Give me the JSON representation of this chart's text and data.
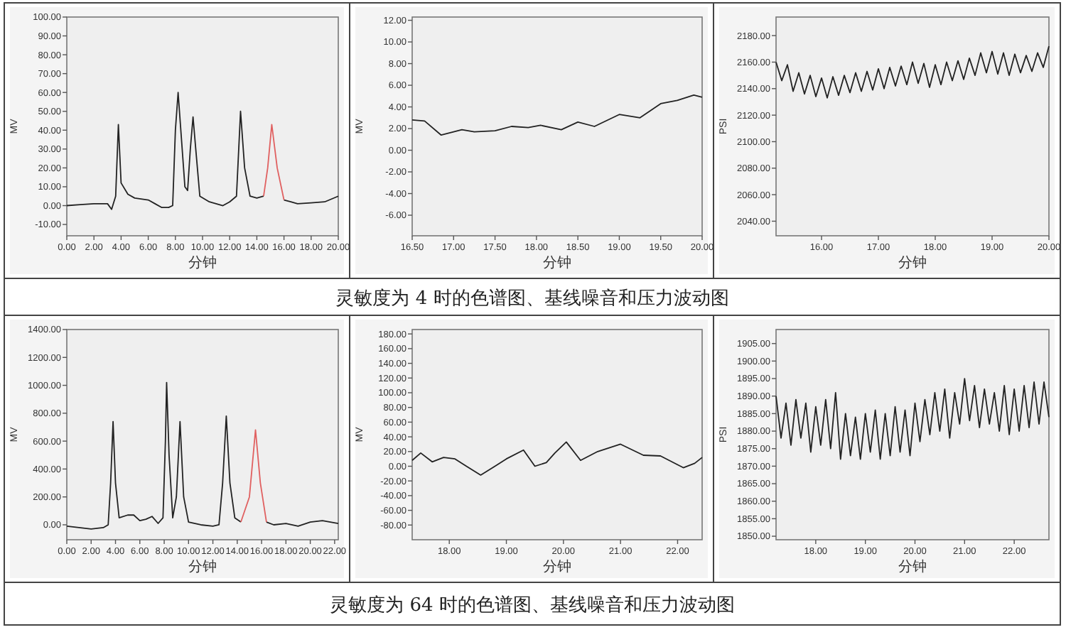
{
  "chart_data": [
    {
      "type": "line",
      "xlabel": "分钟",
      "ylabel": "MV",
      "xlim": [
        0,
        20
      ],
      "ylim": [
        -16,
        100
      ],
      "xticks": [
        {
          "value": 0,
          "label": "0.00"
        },
        {
          "value": 2,
          "label": "2.00"
        },
        {
          "value": 4,
          "label": "4.00"
        },
        {
          "value": 6,
          "label": "6.00"
        },
        {
          "value": 8,
          "label": "8.00"
        },
        {
          "value": 10,
          "label": "10.00"
        },
        {
          "value": 12,
          "label": "12.00"
        },
        {
          "value": 14,
          "label": "14.00"
        },
        {
          "value": 16,
          "label": "16.00"
        },
        {
          "value": 18,
          "label": "18.00"
        },
        {
          "value": 20,
          "label": "20.00"
        }
      ],
      "yticks": [
        {
          "value": -10,
          "label": "-10.00"
        },
        {
          "value": 0,
          "label": "0.00"
        },
        {
          "value": 10,
          "label": "10.00"
        },
        {
          "value": 20,
          "label": "20.00"
        },
        {
          "value": 30,
          "label": "30.00"
        },
        {
          "value": 40,
          "label": "40.00"
        },
        {
          "value": 50,
          "label": "50.00"
        },
        {
          "value": 60,
          "label": "60.00"
        },
        {
          "value": 70,
          "label": "70.00"
        },
        {
          "value": 80,
          "label": "80.00"
        },
        {
          "value": 90,
          "label": "90.00"
        },
        {
          "value": 100,
          "label": "100.00"
        }
      ],
      "series": [
        {
          "color": "#222222",
          "x": [
            0,
            1,
            2,
            3,
            3.3,
            3.6,
            3.8,
            4,
            4.5,
            5,
            6,
            6.5,
            7,
            7.5,
            7.8,
            8,
            8.2,
            8.4,
            8.7,
            8.9,
            9.1,
            9.3,
            9.5,
            9.8,
            10.5,
            11.5,
            12,
            12.5,
            12.8,
            13.1,
            13.5,
            14,
            14.5,
            15,
            16,
            16.5,
            17,
            18,
            19,
            20
          ],
          "values": [
            0,
            0.5,
            1,
            1,
            -2,
            5,
            43,
            12,
            6,
            4,
            3,
            1,
            -1,
            -1,
            0,
            40,
            60,
            40,
            10,
            8,
            30,
            47,
            30,
            5,
            2,
            0,
            2,
            5,
            50,
            20,
            5,
            4,
            5,
            null,
            3,
            2,
            1,
            1.5,
            2,
            5
          ]
        },
        {
          "color": "#e06060",
          "x": [
            14.5,
            14.8,
            15.1,
            15.5,
            16
          ],
          "values": [
            5,
            20,
            43,
            20,
            3
          ]
        }
      ]
    },
    {
      "type": "line",
      "xlabel": "分钟",
      "ylabel": "MV",
      "xlim": [
        16.5,
        20
      ],
      "ylim": [
        -7.9,
        12.3
      ],
      "xticks": [
        {
          "value": 16.5,
          "label": "16.50"
        },
        {
          "value": 17,
          "label": "17.00"
        },
        {
          "value": 17.5,
          "label": "17.50"
        },
        {
          "value": 18,
          "label": "18.00"
        },
        {
          "value": 18.5,
          "label": "18.50"
        },
        {
          "value": 19,
          "label": "19.00"
        },
        {
          "value": 19.5,
          "label": "19.50"
        },
        {
          "value": 20,
          "label": "20.00"
        }
      ],
      "yticks": [
        {
          "value": -6,
          "label": "-6.00"
        },
        {
          "value": -4,
          "label": "-4.00"
        },
        {
          "value": -2,
          "label": "-2.00"
        },
        {
          "value": 0,
          "label": "0.00"
        },
        {
          "value": 2,
          "label": "2.00"
        },
        {
          "value": 4,
          "label": "4.00"
        },
        {
          "value": 6,
          "label": "6.00"
        },
        {
          "value": 8,
          "label": "8.00"
        },
        {
          "value": 10,
          "label": "10.00"
        },
        {
          "value": 12,
          "label": "12.00"
        }
      ],
      "series": [
        {
          "color": "#222222",
          "x": [
            16.5,
            16.65,
            16.85,
            17.1,
            17.25,
            17.5,
            17.7,
            17.9,
            18.05,
            18.3,
            18.5,
            18.7,
            19,
            19.25,
            19.5,
            19.7,
            19.9,
            20
          ],
          "values": [
            2.8,
            2.7,
            1.4,
            1.9,
            1.7,
            1.8,
            2.2,
            2.1,
            2.3,
            1.9,
            2.6,
            2.2,
            3.3,
            3,
            4.3,
            4.6,
            5.1,
            4.9
          ]
        }
      ]
    },
    {
      "type": "line",
      "xlabel": "分钟",
      "ylabel": "PSI",
      "xlim": [
        15.2,
        20
      ],
      "ylim": [
        2029,
        2194
      ],
      "xticks": [
        {
          "value": 16,
          "label": "16.00"
        },
        {
          "value": 17,
          "label": "17.00"
        },
        {
          "value": 18,
          "label": "18.00"
        },
        {
          "value": 19,
          "label": "19.00"
        },
        {
          "value": 20,
          "label": "20.00"
        }
      ],
      "yticks": [
        {
          "value": 2040,
          "label": "2040.00"
        },
        {
          "value": 2060,
          "label": "2060.00"
        },
        {
          "value": 2080,
          "label": "2080.00"
        },
        {
          "value": 2100,
          "label": "2100.00"
        },
        {
          "value": 2120,
          "label": "2120.00"
        },
        {
          "value": 2140,
          "label": "2140.00"
        },
        {
          "value": 2160,
          "label": "2160.00"
        },
        {
          "value": 2180,
          "label": "2180.00"
        }
      ],
      "series": [
        {
          "color": "#222222",
          "x": [
            15.2,
            15.3,
            15.4,
            15.5,
            15.6,
            15.7,
            15.8,
            15.9,
            16,
            16.1,
            16.2,
            16.3,
            16.4,
            16.5,
            16.6,
            16.7,
            16.8,
            16.9,
            17,
            17.1,
            17.2,
            17.3,
            17.4,
            17.5,
            17.6,
            17.7,
            17.8,
            17.9,
            18,
            18.1,
            18.2,
            18.3,
            18.4,
            18.5,
            18.6,
            18.7,
            18.8,
            18.9,
            19,
            19.1,
            19.2,
            19.3,
            19.4,
            19.5,
            19.6,
            19.7,
            19.8,
            19.9,
            20
          ],
          "values": [
            2160,
            2146,
            2158,
            2138,
            2152,
            2136,
            2150,
            2134,
            2148,
            2133,
            2149,
            2135,
            2150,
            2137,
            2152,
            2138,
            2153,
            2139,
            2155,
            2140,
            2156,
            2142,
            2157,
            2143,
            2160,
            2144,
            2159,
            2141,
            2158,
            2143,
            2160,
            2146,
            2161,
            2147,
            2163,
            2150,
            2167,
            2152,
            2168,
            2151,
            2167,
            2150,
            2166,
            2152,
            2165,
            2153,
            2167,
            2156,
            2172
          ]
        }
      ]
    },
    {
      "type": "other",
      "title": "灵敏度为 4 时的色谱图、基线噪音和压力波动图"
    },
    {
      "type": "line",
      "xlabel": "分钟",
      "ylabel": "MV",
      "xlim": [
        0,
        22.3
      ],
      "ylim": [
        -107,
        1400
      ],
      "xticks": [
        {
          "value": 0,
          "label": "0.00"
        },
        {
          "value": 2,
          "label": "2.00"
        },
        {
          "value": 4,
          "label": "4.00"
        },
        {
          "value": 6,
          "label": "6.00"
        },
        {
          "value": 8,
          "label": "8.00"
        },
        {
          "value": 10,
          "label": "10.00"
        },
        {
          "value": 12,
          "label": "12.00"
        },
        {
          "value": 14,
          "label": "14.00"
        },
        {
          "value": 16,
          "label": "16.00"
        },
        {
          "value": 18,
          "label": "18.00"
        },
        {
          "value": 20,
          "label": "20.00"
        },
        {
          "value": 22,
          "label": "22.00"
        }
      ],
      "yticks": [
        {
          "value": 0,
          "label": "0.00"
        },
        {
          "value": 200,
          "label": "200.00"
        },
        {
          "value": 400,
          "label": "400.00"
        },
        {
          "value": 600,
          "label": "600.00"
        },
        {
          "value": 800,
          "label": "800.00"
        },
        {
          "value": 1000,
          "label": "1000.00"
        },
        {
          "value": 1200,
          "label": "1200.00"
        },
        {
          "value": 1400,
          "label": "1400.00"
        }
      ],
      "series": [
        {
          "color": "#222222",
          "x": [
            0,
            1,
            2,
            3,
            3.4,
            3.6,
            3.8,
            4,
            4.3,
            5,
            5.5,
            6,
            6.5,
            7,
            7.5,
            7.9,
            8.1,
            8.2,
            8.4,
            8.7,
            9,
            9.3,
            9.6,
            10,
            11,
            12,
            12.5,
            12.8,
            13.1,
            13.4,
            13.8,
            14.3,
            15,
            16.4,
            17,
            18,
            19,
            20,
            21,
            22.3
          ],
          "values": [
            -10,
            -20,
            -30,
            -20,
            0,
            300,
            740,
            300,
            50,
            70,
            70,
            30,
            40,
            60,
            10,
            50,
            600,
            1020,
            500,
            50,
            200,
            740,
            200,
            20,
            0,
            -10,
            0,
            300,
            780,
            300,
            50,
            20,
            null,
            20,
            0,
            10,
            -10,
            20,
            30,
            10
          ]
        },
        {
          "color": "#e06060",
          "x": [
            14.3,
            15,
            15.5,
            15.9,
            16.4
          ],
          "values": [
            20,
            200,
            680,
            300,
            20
          ]
        }
      ]
    },
    {
      "type": "line",
      "xlabel": "分钟",
      "ylabel": "MV",
      "xlim": [
        17.35,
        22.43
      ],
      "ylim": [
        -100,
        186
      ],
      "xticks": [
        {
          "value": 18,
          "label": "18.00"
        },
        {
          "value": 19,
          "label": "19.00"
        },
        {
          "value": 20,
          "label": "20.00"
        },
        {
          "value": 21,
          "label": "21.00"
        },
        {
          "value": 22,
          "label": "22.00"
        }
      ],
      "yticks": [
        {
          "value": -80,
          "label": "-80.00"
        },
        {
          "value": -60,
          "label": "-60.00"
        },
        {
          "value": -40,
          "label": "-40.00"
        },
        {
          "value": -20,
          "label": "-20.00"
        },
        {
          "value": 0,
          "label": "0.00"
        },
        {
          "value": 20,
          "label": "20.00"
        },
        {
          "value": 40,
          "label": "40.00"
        },
        {
          "value": 60,
          "label": "60.00"
        },
        {
          "value": 80,
          "label": "80.00"
        },
        {
          "value": 100,
          "label": "100.00"
        },
        {
          "value": 120,
          "label": "120.00"
        },
        {
          "value": 140,
          "label": "140.00"
        },
        {
          "value": 160,
          "label": "160.00"
        },
        {
          "value": 180,
          "label": "180.00"
        }
      ],
      "series": [
        {
          "color": "#222222",
          "x": [
            17.35,
            17.5,
            17.7,
            17.9,
            18.1,
            18.3,
            18.55,
            18.8,
            19,
            19.3,
            19.5,
            19.7,
            19.85,
            20.05,
            20.3,
            20.6,
            21,
            21.4,
            21.7,
            22.1,
            22.3,
            22.43
          ],
          "values": [
            8,
            18,
            6,
            12,
            10,
            0,
            -12,
            0,
            10,
            22,
            0,
            5,
            18,
            33,
            8,
            20,
            30,
            15,
            14,
            -2,
            4,
            12
          ]
        }
      ]
    },
    {
      "type": "line",
      "xlabel": "分钟",
      "ylabel": "PSI",
      "xlim": [
        17.2,
        22.7
      ],
      "ylim": [
        1849,
        1909
      ],
      "xticks": [
        {
          "value": 18,
          "label": "18.00"
        },
        {
          "value": 19,
          "label": "19.00"
        },
        {
          "value": 20,
          "label": "20.00"
        },
        {
          "value": 21,
          "label": "21.00"
        },
        {
          "value": 22,
          "label": "22.00"
        }
      ],
      "yticks": [
        {
          "value": 1850,
          "label": "1850.00"
        },
        {
          "value": 1855,
          "label": "1855.00"
        },
        {
          "value": 1860,
          "label": "1860.00"
        },
        {
          "value": 1865,
          "label": "1865.00"
        },
        {
          "value": 1870,
          "label": "1870.00"
        },
        {
          "value": 1875,
          "label": "1875.00"
        },
        {
          "value": 1880,
          "label": "1880.00"
        },
        {
          "value": 1885,
          "label": "1885.00"
        },
        {
          "value": 1890,
          "label": "1890.00"
        },
        {
          "value": 1895,
          "label": "1895.00"
        },
        {
          "value": 1900,
          "label": "1900.00"
        },
        {
          "value": 1905,
          "label": "1905.00"
        }
      ],
      "series": [
        {
          "color": "#222222",
          "x": [
            17.2,
            17.3,
            17.4,
            17.5,
            17.6,
            17.7,
            17.8,
            17.9,
            18,
            18.1,
            18.2,
            18.3,
            18.4,
            18.5,
            18.6,
            18.7,
            18.8,
            18.9,
            19,
            19.1,
            19.2,
            19.3,
            19.4,
            19.5,
            19.6,
            19.7,
            19.8,
            19.9,
            20,
            20.1,
            20.2,
            20.3,
            20.4,
            20.5,
            20.6,
            20.7,
            20.8,
            20.9,
            21,
            21.1,
            21.2,
            21.3,
            21.4,
            21.5,
            21.6,
            21.7,
            21.8,
            21.9,
            22,
            22.1,
            22.2,
            22.3,
            22.4,
            22.5,
            22.6,
            22.7
          ],
          "values": [
            1890,
            1878,
            1888,
            1876,
            1889,
            1878,
            1888,
            1874,
            1887,
            1876,
            1889,
            1875,
            1891,
            1872,
            1885,
            1873,
            1884,
            1872,
            1885,
            1874,
            1886,
            1872,
            1885,
            1873,
            1887,
            1874,
            1886,
            1873,
            1888,
            1877,
            1889,
            1879,
            1891,
            1880,
            1892,
            1878,
            1891,
            1882,
            1895,
            1883,
            1893,
            1881,
            1892,
            1882,
            1891,
            1880,
            1893,
            1879,
            1892,
            1880,
            1893,
            1881,
            1894,
            1882,
            1894,
            1884
          ]
        }
      ]
    },
    {
      "type": "other",
      "title": "灵敏度为 64 时的色谱图、基线噪音和压力波动图"
    }
  ]
}
